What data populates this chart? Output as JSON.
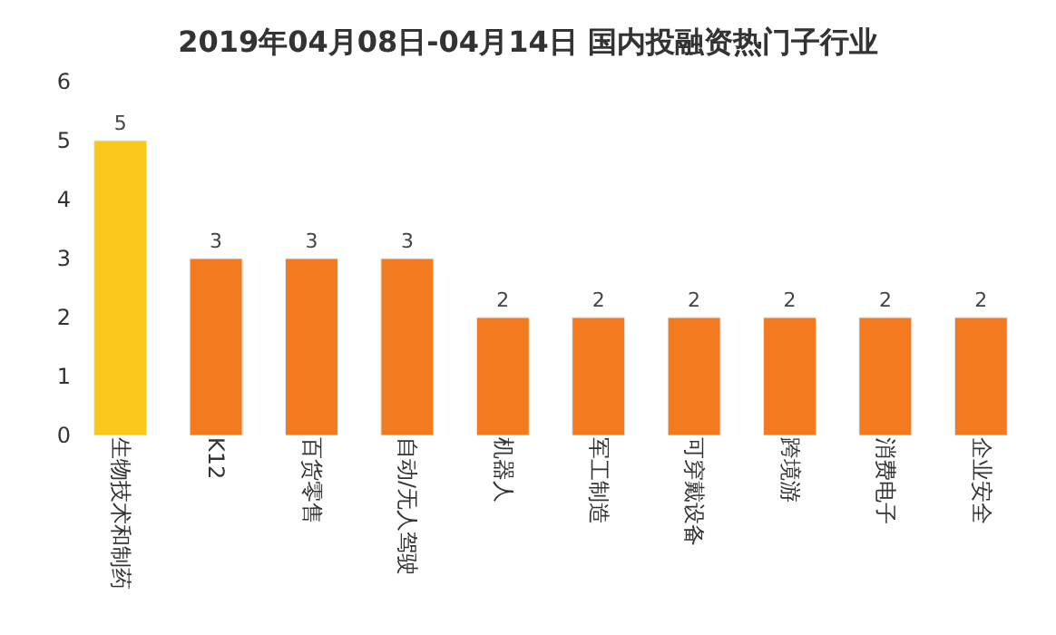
{
  "chart_data": {
    "type": "bar",
    "title": "2019年04月08日-04月14日 国内投融资热门子行业",
    "categories": [
      "生物技术和制药",
      "K12",
      "百货零售",
      "自动/无人驾驶",
      "机器人",
      "军工制造",
      "可穿戴设备",
      "跨境游",
      "消费电子",
      "企业安全"
    ],
    "values": [
      5,
      3,
      3,
      3,
      2,
      2,
      2,
      2,
      2,
      2
    ],
    "colors": [
      "#f9c81a",
      "#f47a20",
      "#f47a20",
      "#f47a20",
      "#f47a20",
      "#f47a20",
      "#f47a20",
      "#f47a20",
      "#f47a20",
      "#f47a20"
    ],
    "ylim": [
      0,
      6
    ],
    "yticks": [
      0,
      1,
      2,
      3,
      4,
      5,
      6
    ],
    "data_labels": true
  }
}
